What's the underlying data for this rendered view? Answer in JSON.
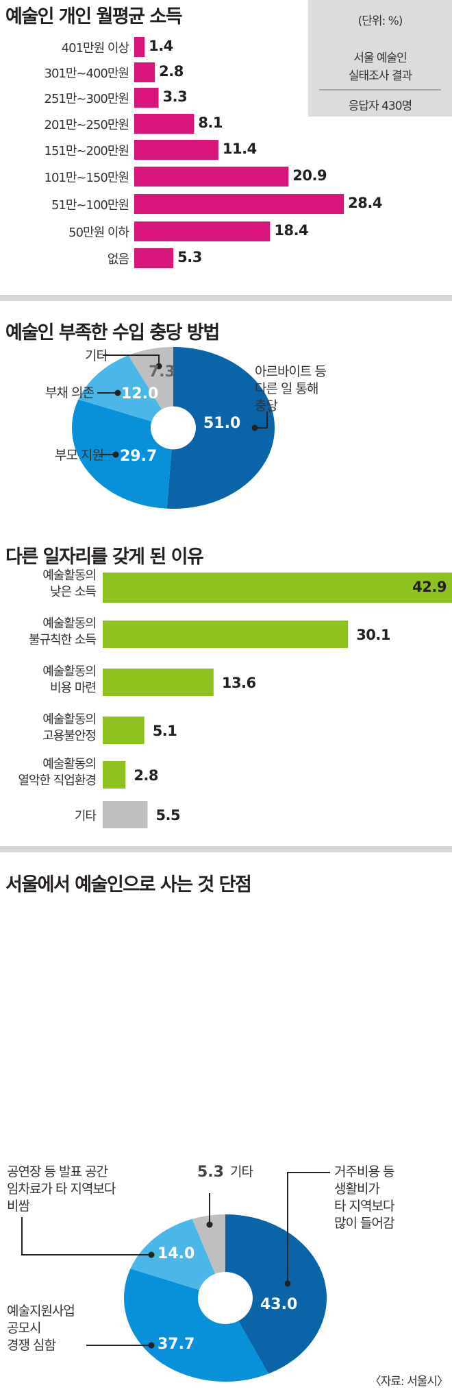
{
  "colors": {
    "pink": "#d9147a",
    "green": "#8dc21f",
    "gray": "#bfbfbf",
    "dark_blue": "#0b63a8",
    "mid_blue": "#0890d8",
    "light_blue": "#4bb6e8"
  },
  "info_box": {
    "unit": "(단위: %)",
    "line1": "서울 예술인",
    "line2": "실태조사 결과",
    "respondents": "응답자 430명"
  },
  "source": "〈자료: 서울시〉",
  "chart_data": [
    {
      "type": "bar",
      "orientation": "horizontal",
      "title": "예술인 개인 월평균 소득",
      "categories": [
        "401만원 이상",
        "301만~400만원",
        "251만~300만원",
        "201만~250만원",
        "151만~200만원",
        "101만~150만원",
        "51만~100만원",
        "50만원 이하",
        "없음"
      ],
      "values": [
        1.4,
        2.8,
        3.3,
        8.1,
        11.4,
        20.9,
        28.4,
        18.4,
        5.3
      ],
      "value_labels": [
        "1.4",
        "2.8",
        "3.3",
        "8.1",
        "11.4",
        "20.9",
        "28.4",
        "18.4",
        "5.3"
      ],
      "unit": "%"
    },
    {
      "type": "pie",
      "donut": true,
      "title": "예술인 부족한 수입 충당 방법",
      "slices": [
        {
          "label": "아르바이트 등 다른 일 통해 충당",
          "label_lines": [
            "아르바이트 등",
            "다른 일 통해",
            "충당"
          ],
          "value": 51.0,
          "value_label": "51.0",
          "color": "dark_blue"
        },
        {
          "label": "부모 지원",
          "label_lines": [
            "부모 지원"
          ],
          "value": 29.7,
          "value_label": "29.7",
          "color": "mid_blue"
        },
        {
          "label": "부채 의존",
          "label_lines": [
            "부채 의존"
          ],
          "value": 12.0,
          "value_label": "12.0",
          "color": "light_blue"
        },
        {
          "label": "기타",
          "label_lines": [
            "기타"
          ],
          "value": 7.3,
          "value_label": "7.3",
          "color": "gray"
        }
      ]
    },
    {
      "type": "bar",
      "orientation": "horizontal",
      "title": "다른 일자리를 갖게 된 이유",
      "categories": [
        [
          "예술활동의",
          "낮은 소득"
        ],
        [
          "예술활동의",
          "불규칙한 소득"
        ],
        [
          "예술활동의",
          "비용 마련"
        ],
        [
          "예술활동의",
          "고용불안정"
        ],
        [
          "예술활동의",
          "열악한 직업환경"
        ],
        [
          "기타"
        ]
      ],
      "values": [
        42.9,
        30.1,
        13.6,
        5.1,
        2.8,
        5.5
      ],
      "value_labels": [
        "42.9",
        "30.1",
        "13.6",
        "5.1",
        "2.8",
        "5.5"
      ],
      "unit": "%"
    },
    {
      "type": "pie",
      "donut": true,
      "title": "서울에서 예술인으로 사는 것 단점",
      "slices": [
        {
          "label": "거주비용 등 생활비가 타 지역보다 많이 들어감",
          "label_lines": [
            "거주비용 등",
            "생활비가",
            "타 지역보다",
            "많이 들어감"
          ],
          "value": 43.0,
          "value_label": "43.0",
          "color": "dark_blue"
        },
        {
          "label": "예술지원사업 공모시 경쟁 심함",
          "label_lines": [
            "예술지원사업",
            "공모시",
            "경쟁 심함"
          ],
          "value": 37.7,
          "value_label": "37.7",
          "color": "mid_blue"
        },
        {
          "label": "공연장 등 발표 공간 임차료가 타 지역보다 비쌈",
          "label_lines": [
            "공연장 등 발표 공간",
            "임차료가 타 지역보다",
            "비쌈"
          ],
          "value": 14.0,
          "value_label": "14.0",
          "color": "light_blue"
        },
        {
          "label": "기타",
          "label_lines": [
            "기타"
          ],
          "value": 5.3,
          "value_label": "5.3",
          "color": "gray"
        }
      ]
    }
  ]
}
